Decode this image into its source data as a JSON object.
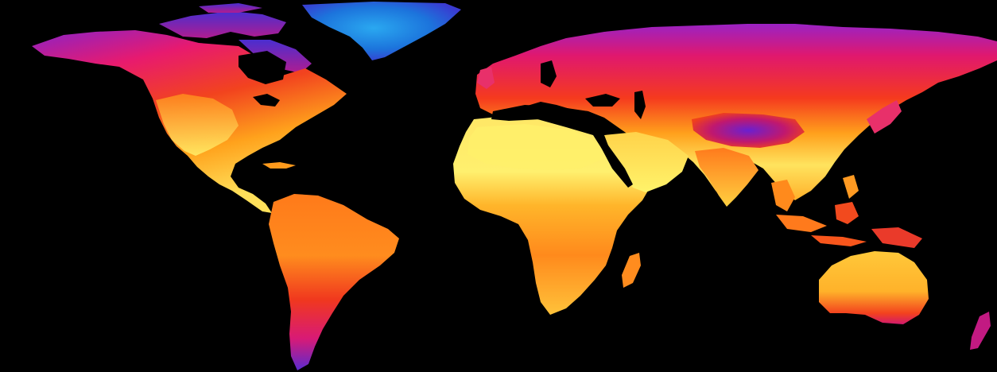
{
  "map": {
    "projection": "equirectangular",
    "background_color": "#000000",
    "ocean_color": "#000000",
    "color_scale": {
      "cold": "#1e7be0",
      "cool": "#6a1fd0",
      "mild": "#e0187a",
      "warm": "#f0401c",
      "hot": "#ff9d1a",
      "hottest": "#fff36a"
    },
    "labels": []
  }
}
